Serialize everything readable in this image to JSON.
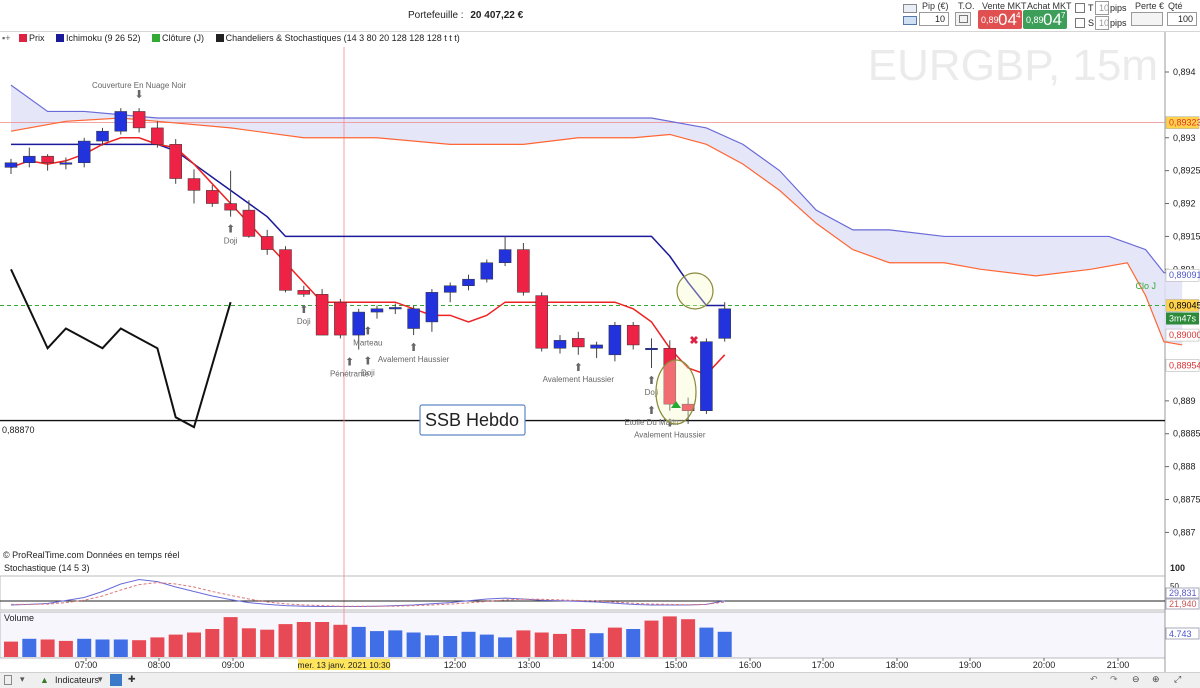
{
  "header": {
    "portfolio_label": "Portefeuille :",
    "portfolio_value": "20 407,22 €",
    "pip_label": "Pip (€)",
    "pip_value": "10",
    "to_label": "T.O.",
    "sell_label": "Vente MKT",
    "sell_small": "0,89",
    "sell_big": "04",
    "sell_sup": "4",
    "buy_label": "Achat MKT",
    "buy_small": "0,89",
    "buy_big": "04",
    "buy_sup": "7",
    "t_label": "T",
    "s_label": "S",
    "t_pips_value": "10",
    "s_pips_value": "10",
    "pips_label": "pips",
    "perte_label": "Perte €",
    "qty_label": "Qté Auto",
    "qty_value": "100"
  },
  "legend": {
    "price": "Prix",
    "ichimoku": "Ichimoku (9 26 52)",
    "close": "Clôture (J)",
    "patterns": "Chandeliers & Stochastiques (14 3 80 20 128 128 128 t t t)"
  },
  "chart_data": [
    {
      "type": "candlestick",
      "watermark": "EURGBP, 15m",
      "y_ticks": [
        "0,894",
        "0,893",
        "0,8925",
        "0,892",
        "0,8915",
        "0,891",
        "0,889",
        "0,8885",
        "0,888",
        "0,8875",
        "0,887"
      ],
      "ylim": [
        0.88655,
        0.89438
      ],
      "x_ticks": [
        "07:00",
        "08:00",
        "09:00",
        "12:00",
        "13:00",
        "14:00",
        "15:00",
        "16:00",
        "17:00",
        "18:00",
        "19:00",
        "20:00",
        "21:00"
      ],
      "crosshair_time_label": "mer. 13 janv. 2021 10:30",
      "price_tags": [
        {
          "text": "0,89323",
          "value": 0.89323,
          "color": "#dd3333",
          "fill": "#ffd24a"
        },
        {
          "text": "0,89091",
          "value": 0.89091,
          "color": "#4a55c8",
          "fill": "#ffffff"
        },
        {
          "text": "0,89045",
          "value": 0.89045,
          "color": "#000000",
          "fill": "#ffd24a"
        },
        {
          "text": "0,89000",
          "value": 0.89,
          "color": "#dd3333",
          "fill": "#ffffff"
        },
        {
          "text": "0,88954",
          "value": 0.88954,
          "color": "#dd3333",
          "fill": "#ffffff"
        }
      ],
      "countdown": "3m47s",
      "clo_label": "Clo J",
      "support_level": "0,88870",
      "support_value": 0.8887,
      "ssb_label": "SSB Hebdo",
      "source_note": "© ProRealTime.com  Données en temps réel",
      "candles": [
        {
          "o": 0.89255,
          "h": 0.89268,
          "l": 0.89245,
          "c": 0.89262
        },
        {
          "o": 0.89262,
          "h": 0.89285,
          "l": 0.89255,
          "c": 0.89272
        },
        {
          "o": 0.89272,
          "h": 0.89275,
          "l": 0.8925,
          "c": 0.89262
        },
        {
          "o": 0.89262,
          "h": 0.8927,
          "l": 0.89252,
          "c": 0.89262
        },
        {
          "o": 0.89262,
          "h": 0.893,
          "l": 0.89255,
          "c": 0.89295
        },
        {
          "o": 0.89295,
          "h": 0.89315,
          "l": 0.89288,
          "c": 0.8931
        },
        {
          "o": 0.8931,
          "h": 0.89345,
          "l": 0.89305,
          "c": 0.8934
        },
        {
          "o": 0.8934,
          "h": 0.89345,
          "l": 0.89308,
          "c": 0.89315
        },
        {
          "o": 0.89315,
          "h": 0.89325,
          "l": 0.89285,
          "c": 0.8929
        },
        {
          "o": 0.8929,
          "h": 0.89298,
          "l": 0.8923,
          "c": 0.89238
        },
        {
          "o": 0.89238,
          "h": 0.89252,
          "l": 0.892,
          "c": 0.8922
        },
        {
          "o": 0.8922,
          "h": 0.89228,
          "l": 0.89195,
          "c": 0.892
        },
        {
          "o": 0.892,
          "h": 0.8925,
          "l": 0.8918,
          "c": 0.8919
        },
        {
          "o": 0.8919,
          "h": 0.89205,
          "l": 0.89148,
          "c": 0.8915
        },
        {
          "o": 0.8915,
          "h": 0.8916,
          "l": 0.89122,
          "c": 0.8913
        },
        {
          "o": 0.8913,
          "h": 0.89135,
          "l": 0.89065,
          "c": 0.89068
        },
        {
          "o": 0.89068,
          "h": 0.89075,
          "l": 0.89058,
          "c": 0.89062
        },
        {
          "o": 0.89062,
          "h": 0.8907,
          "l": 0.89,
          "c": 0.89
        },
        {
          "o": 0.8905,
          "h": 0.89055,
          "l": 0.88995,
          "c": 0.89
        },
        {
          "o": 0.89,
          "h": 0.8904,
          "l": 0.88978,
          "c": 0.89035
        },
        {
          "o": 0.89035,
          "h": 0.89045,
          "l": 0.89025,
          "c": 0.8904
        },
        {
          "o": 0.8904,
          "h": 0.89048,
          "l": 0.89032,
          "c": 0.89042
        },
        {
          "o": 0.8901,
          "h": 0.89045,
          "l": 0.89,
          "c": 0.8904
        },
        {
          "o": 0.8902,
          "h": 0.8907,
          "l": 0.89005,
          "c": 0.89065
        },
        {
          "o": 0.89065,
          "h": 0.8908,
          "l": 0.8905,
          "c": 0.89075
        },
        {
          "o": 0.89075,
          "h": 0.89092,
          "l": 0.89068,
          "c": 0.89085
        },
        {
          "o": 0.89085,
          "h": 0.89115,
          "l": 0.8908,
          "c": 0.8911
        },
        {
          "o": 0.8911,
          "h": 0.8915,
          "l": 0.89105,
          "c": 0.8913
        },
        {
          "o": 0.8913,
          "h": 0.8914,
          "l": 0.8906,
          "c": 0.89065
        },
        {
          "o": 0.8906,
          "h": 0.89065,
          "l": 0.88975,
          "c": 0.8898
        },
        {
          "o": 0.8898,
          "h": 0.89,
          "l": 0.88972,
          "c": 0.88992
        },
        {
          "o": 0.88995,
          "h": 0.89005,
          "l": 0.8897,
          "c": 0.88982
        },
        {
          "o": 0.8898,
          "h": 0.8899,
          "l": 0.88965,
          "c": 0.88985
        },
        {
          "o": 0.8897,
          "h": 0.8902,
          "l": 0.8896,
          "c": 0.89015
        },
        {
          "o": 0.89015,
          "h": 0.8902,
          "l": 0.88978,
          "c": 0.88985
        },
        {
          "o": 0.8898,
          "h": 0.88995,
          "l": 0.8895,
          "c": 0.8898
        },
        {
          "o": 0.8898,
          "h": 0.88992,
          "l": 0.88885,
          "c": 0.88895
        },
        {
          "o": 0.88895,
          "h": 0.88905,
          "l": 0.88865,
          "c": 0.88885
        },
        {
          "o": 0.88885,
          "h": 0.88995,
          "l": 0.8888,
          "c": 0.8899
        },
        {
          "o": 0.88995,
          "h": 0.8905,
          "l": 0.8899,
          "c": 0.8904
        }
      ],
      "ichimoku": {
        "tenkan": [
          [
            0,
            0.89255
          ],
          [
            1,
            0.89265
          ],
          [
            2,
            0.8926
          ],
          [
            3,
            0.89265
          ],
          [
            4,
            0.89275
          ],
          [
            5,
            0.8929
          ],
          [
            6,
            0.893
          ],
          [
            7,
            0.893
          ],
          [
            8,
            0.8929
          ],
          [
            9,
            0.89285
          ],
          [
            10,
            0.8926
          ],
          [
            11,
            0.8923
          ],
          [
            12,
            0.892
          ],
          [
            13,
            0.8917
          ],
          [
            14,
            0.8914
          ],
          [
            15,
            0.8911
          ],
          [
            16,
            0.8908
          ],
          [
            17,
            0.8905
          ],
          [
            18,
            0.8905
          ],
          [
            19,
            0.8905
          ],
          [
            20,
            0.8905
          ],
          [
            21,
            0.8905
          ],
          [
            22,
            0.8904
          ],
          [
            23,
            0.8903
          ],
          [
            24,
            0.8903
          ],
          [
            25,
            0.8902
          ],
          [
            26,
            0.8903
          ],
          [
            27,
            0.8905
          ],
          [
            28,
            0.8905
          ],
          [
            29,
            0.8905
          ],
          [
            30,
            0.8905
          ],
          [
            31,
            0.8905
          ],
          [
            32,
            0.8905
          ],
          [
            33,
            0.8905
          ],
          [
            34,
            0.8904
          ],
          [
            35,
            0.8902
          ],
          [
            36,
            0.8898
          ],
          [
            37,
            0.8895
          ],
          [
            38,
            0.8894
          ],
          [
            39,
            0.8897
          ]
        ],
        "kijun": [
          [
            0,
            0.8929
          ],
          [
            1,
            0.8929
          ],
          [
            2,
            0.8929
          ],
          [
            3,
            0.8929
          ],
          [
            4,
            0.8929
          ],
          [
            5,
            0.8929
          ],
          [
            6,
            0.8929
          ],
          [
            7,
            0.8929
          ],
          [
            8,
            0.8929
          ],
          [
            9,
            0.8928
          ],
          [
            10,
            0.8926
          ],
          [
            11,
            0.8924
          ],
          [
            12,
            0.8922
          ],
          [
            13,
            0.892
          ],
          [
            14,
            0.8918
          ],
          [
            15,
            0.8915
          ],
          [
            16,
            0.8915
          ],
          [
            17,
            0.8915
          ],
          [
            18,
            0.8915
          ],
          [
            19,
            0.8915
          ],
          [
            20,
            0.8915
          ],
          [
            21,
            0.8915
          ],
          [
            22,
            0.8915
          ],
          [
            23,
            0.8915
          ],
          [
            24,
            0.8915
          ],
          [
            25,
            0.8915
          ],
          [
            26,
            0.8915
          ],
          [
            27,
            0.8915
          ],
          [
            28,
            0.8915
          ],
          [
            29,
            0.8915
          ],
          [
            30,
            0.8915
          ],
          [
            31,
            0.8915
          ],
          [
            32,
            0.8915
          ],
          [
            33,
            0.8915
          ],
          [
            34,
            0.8915
          ],
          [
            35,
            0.8915
          ],
          [
            36,
            0.8912
          ],
          [
            37,
            0.8908
          ],
          [
            38,
            0.89045
          ],
          [
            39,
            0.89045
          ]
        ],
        "ssa": [
          [
            0,
            0.8931
          ],
          [
            3,
            0.89325
          ],
          [
            6,
            0.8933
          ],
          [
            8,
            0.89325
          ],
          [
            12,
            0.89315
          ],
          [
            16,
            0.893
          ],
          [
            20,
            0.893
          ],
          [
            24,
            0.8929
          ],
          [
            28,
            0.8929
          ],
          [
            31,
            0.893
          ],
          [
            34,
            0.893
          ],
          [
            36,
            0.89305
          ],
          [
            38,
            0.8929
          ],
          [
            40,
            0.8926
          ],
          [
            42,
            0.8922
          ],
          [
            44,
            0.8917
          ],
          [
            46,
            0.8913
          ],
          [
            48,
            0.8911
          ],
          [
            51,
            0.8911
          ],
          [
            53,
            0.891
          ],
          [
            56,
            0.8909
          ],
          [
            59,
            0.891
          ],
          [
            61,
            0.8911
          ],
          [
            62,
            0.8906
          ],
          [
            63,
            0.8899
          ],
          [
            64,
            0.88985
          ]
        ],
        "ssb": [
          [
            0,
            0.8938
          ],
          [
            2,
            0.8934
          ],
          [
            4,
            0.8934
          ],
          [
            8,
            0.8933
          ],
          [
            14,
            0.8933
          ],
          [
            20,
            0.8933
          ],
          [
            28,
            0.8933
          ],
          [
            35,
            0.8933
          ],
          [
            38,
            0.89315
          ],
          [
            40,
            0.8929
          ],
          [
            42,
            0.8925
          ],
          [
            44,
            0.8919
          ],
          [
            46,
            0.8916
          ],
          [
            48,
            0.8916
          ],
          [
            51,
            0.8915
          ],
          [
            55,
            0.8915
          ],
          [
            60,
            0.8915
          ],
          [
            62,
            0.8913
          ],
          [
            63,
            0.89095
          ],
          [
            64,
            0.8909
          ]
        ],
        "chikou": [
          [
            0,
            0.891
          ],
          [
            2,
            0.8898
          ],
          [
            3,
            0.8901
          ],
          [
            5,
            0.8898
          ],
          [
            6,
            0.8901
          ],
          [
            8,
            0.8898
          ],
          [
            9,
            0.88875
          ],
          [
            10,
            0.8886
          ],
          [
            12,
            0.8905
          ]
        ]
      },
      "patterns": [
        {
          "label": "Couverture En Nuage Noir",
          "bar": 7,
          "side": "above"
        },
        {
          "label": "Doji",
          "bar": 12,
          "side": "below"
        },
        {
          "label": "Doji",
          "bar": 16,
          "side": "below"
        },
        {
          "label": "Marteau",
          "bar": 19.5,
          "side": "below"
        },
        {
          "label": "Doji",
          "bar": 19.5,
          "side": "below"
        },
        {
          "label": "Pénétrante",
          "bar": 18.5,
          "side": "below"
        },
        {
          "label": "Avalement Haussier",
          "bar": 22,
          "side": "below"
        },
        {
          "label": "Avalement Haussier",
          "bar": 31,
          "side": "below"
        },
        {
          "label": "Doji",
          "bar": 35,
          "side": "below"
        },
        {
          "label": "Avalement Haussier",
          "bar": 36,
          "side": "below"
        },
        {
          "label": "Etoile Du Matin",
          "bar": 35,
          "side": "below"
        }
      ]
    },
    {
      "type": "line",
      "title": "Stochastique (14 5 3)",
      "y_ticks": [
        "100",
        "50"
      ],
      "ylim": [
        0,
        100
      ],
      "value_tags": [
        {
          "text": "29,831",
          "color": "#5a5ac8"
        },
        {
          "text": "21,940",
          "color": "#cc5555"
        }
      ],
      "series": [
        {
          "values": [
            10,
            12,
            15,
            25,
            35,
            55,
            80,
            95,
            88,
            70,
            55,
            40,
            28,
            18,
            12,
            8,
            6,
            5,
            5,
            5,
            6,
            8,
            10,
            14,
            18,
            24,
            30,
            33,
            30,
            26,
            24,
            22,
            20,
            16,
            12,
            10,
            10,
            10,
            12,
            24
          ]
        },
        {
          "values": [
            12,
            12,
            13,
            18,
            26,
            40,
            60,
            78,
            85,
            80,
            70,
            55,
            42,
            30,
            20,
            14,
            10,
            8,
            6,
            6,
            6,
            6,
            8,
            10,
            13,
            17,
            22,
            27,
            29,
            29,
            27,
            25,
            23,
            20,
            16,
            13,
            12,
            11,
            12,
            20
          ]
        }
      ]
    },
    {
      "type": "bar",
      "title": "Volume",
      "value_tag": "4.743",
      "values": [
        22,
        26,
        25,
        23,
        26,
        25,
        25,
        24,
        28,
        32,
        35,
        40,
        57,
        41,
        39,
        47,
        50,
        50,
        46,
        43,
        37,
        38,
        35,
        31,
        30,
        36,
        32,
        28,
        38,
        35,
        33,
        40,
        34,
        42,
        40,
        52,
        58,
        54,
        42,
        36
      ],
      "directions": [
        "d",
        "u",
        "d",
        "d",
        "u",
        "u",
        "u",
        "d",
        "d",
        "d",
        "d",
        "d",
        "d",
        "d",
        "d",
        "d",
        "d",
        "d",
        "d",
        "u",
        "u",
        "u",
        "u",
        "u",
        "u",
        "u",
        "u",
        "u",
        "d",
        "d",
        "d",
        "d",
        "u",
        "d",
        "u",
        "d",
        "d",
        "d",
        "u",
        "u"
      ]
    }
  ],
  "bottom": {
    "indicators_label": "Indicateurs"
  },
  "colors": {
    "bull": "#2233dd",
    "bear": "#ee2244",
    "tenkan": "#ee2222",
    "kijun": "#1a1a9a",
    "ssa": "#ff6633",
    "ssb": "#6a6ad8",
    "cloud": "#e2e2f8",
    "close_line": "#33aa33",
    "crosshair": "#f08a8a"
  }
}
